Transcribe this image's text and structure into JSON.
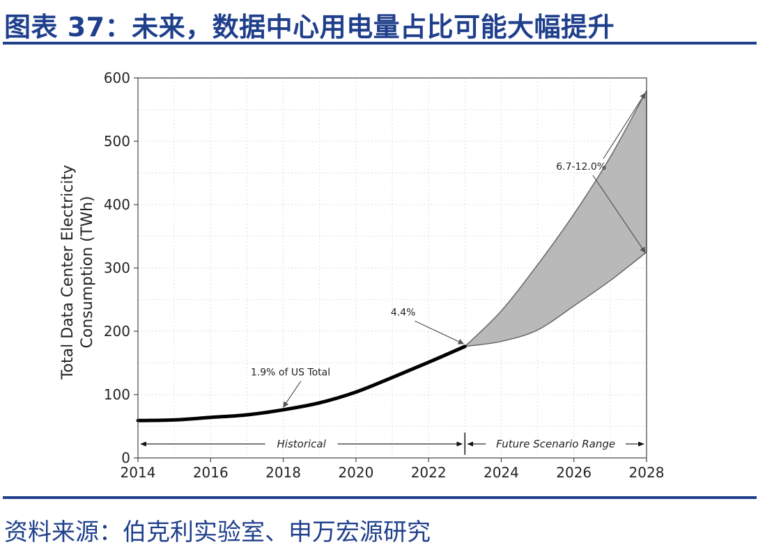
{
  "figure": {
    "title": "图表 37：未来，数据中心用电量占比可能大幅提升",
    "source": "资料来源：伯克利实验室、申万宏源研究"
  },
  "chart_data": {
    "type": "line",
    "title": "",
    "xlabel": "",
    "ylabel_lines": [
      "Total Data Center Electricity",
      "Consumption (TWh)"
    ],
    "xlim": [
      2014,
      2028
    ],
    "ylim": [
      0,
      600
    ],
    "x_ticks": [
      2014,
      2016,
      2018,
      2020,
      2022,
      2024,
      2026,
      2028
    ],
    "y_ticks": [
      0,
      100,
      200,
      300,
      400,
      500,
      600
    ],
    "grid": true,
    "historical": {
      "x": [
        2014,
        2015,
        2016,
        2017,
        2018,
        2019,
        2020,
        2021,
        2022,
        2023
      ],
      "y": [
        59,
        60,
        64,
        68,
        76,
        87,
        104,
        127,
        151,
        176
      ]
    },
    "scenario_high": {
      "x": [
        2023,
        2024,
        2025,
        2026,
        2027,
        2028
      ],
      "y": [
        176,
        232,
        305,
        385,
        475,
        580
      ]
    },
    "scenario_low": {
      "x": [
        2023,
        2024,
        2025,
        2026,
        2027,
        2028
      ],
      "y": [
        176,
        184,
        202,
        240,
        280,
        325
      ]
    },
    "colors": {
      "historical": "#000000",
      "scenario_fill": "#b9b9b9",
      "scenario_edge": "#666666"
    },
    "annotations": [
      {
        "text": "1.9% of US Total",
        "text_xy": [
          2018.2,
          130
        ],
        "targets": [
          [
            2018,
            78
          ]
        ]
      },
      {
        "text": "4.4%",
        "text_xy": [
          2021.3,
          225
        ],
        "targets": [
          [
            2023,
            178
          ]
        ]
      },
      {
        "text": "6.7-12.0%",
        "text_xy": [
          2026.2,
          455
        ],
        "targets": [
          [
            2028,
            578
          ],
          [
            2028,
            322
          ]
        ]
      }
    ],
    "ranges": [
      {
        "label": "Historical",
        "from": 2014,
        "to": 2023,
        "y": 22
      },
      {
        "label": "Future Scenario Range",
        "from": 2023,
        "to": 2028,
        "y": 22
      }
    ],
    "divider_x": 2023
  }
}
